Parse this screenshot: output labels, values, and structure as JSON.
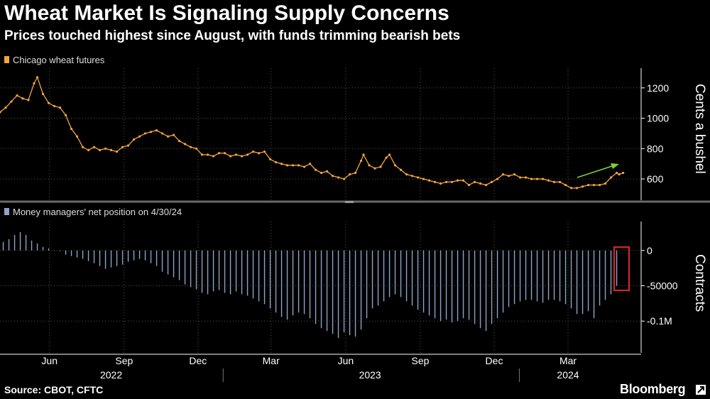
{
  "title": "Wheat Market Is Signaling Supply Concerns",
  "subtitle": "Prices touched highest since August, with funds trimming bearish bets",
  "source": "Source: CBOT, CFTC",
  "brand": "Bloomberg",
  "colors": {
    "price_line": "#f5a53c",
    "position_bars": "#8da3c8",
    "trend_arrow": "#7dd33a",
    "highlight_box": "#e0242c",
    "grid": "#555555",
    "background": "#000000"
  },
  "chart_data": [
    {
      "type": "line",
      "legend": "Chicago wheat futures",
      "ylabel": "Cents a bushel",
      "yticks": [
        600,
        800,
        1000,
        1200
      ],
      "ylim": [
        460,
        1330
      ],
      "x_range": [
        "2022-04-01",
        "2024-05-10"
      ],
      "grid": true,
      "series": [
        {
          "name": "Chicago wheat futures",
          "points": [
            [
              "2022-04-01",
              1040
            ],
            [
              "2022-04-08",
              1070
            ],
            [
              "2022-04-15",
              1110
            ],
            [
              "2022-04-22",
              1150
            ],
            [
              "2022-04-29",
              1130
            ],
            [
              "2022-05-06",
              1120
            ],
            [
              "2022-05-13",
              1230
            ],
            [
              "2022-05-17",
              1270
            ],
            [
              "2022-05-24",
              1160
            ],
            [
              "2022-05-31",
              1100
            ],
            [
              "2022-06-07",
              1080
            ],
            [
              "2022-06-14",
              1070
            ],
            [
              "2022-06-21",
              1020
            ],
            [
              "2022-06-28",
              930
            ],
            [
              "2022-07-05",
              880
            ],
            [
              "2022-07-12",
              810
            ],
            [
              "2022-07-19",
              790
            ],
            [
              "2022-07-26",
              810
            ],
            [
              "2022-08-02",
              790
            ],
            [
              "2022-08-09",
              800
            ],
            [
              "2022-08-16",
              790
            ],
            [
              "2022-08-23",
              780
            ],
            [
              "2022-08-30",
              810
            ],
            [
              "2022-09-06",
              820
            ],
            [
              "2022-09-13",
              860
            ],
            [
              "2022-09-20",
              880
            ],
            [
              "2022-09-27",
              900
            ],
            [
              "2022-10-04",
              910
            ],
            [
              "2022-10-11",
              920
            ],
            [
              "2022-10-18",
              900
            ],
            [
              "2022-10-25",
              880
            ],
            [
              "2022-11-01",
              890
            ],
            [
              "2022-11-08",
              850
            ],
            [
              "2022-11-15",
              830
            ],
            [
              "2022-11-22",
              810
            ],
            [
              "2022-11-29",
              800
            ],
            [
              "2022-12-06",
              760
            ],
            [
              "2022-12-13",
              760
            ],
            [
              "2022-12-20",
              750
            ],
            [
              "2022-12-27",
              770
            ],
            [
              "2023-01-03",
              770
            ],
            [
              "2023-01-10",
              750
            ],
            [
              "2023-01-17",
              760
            ],
            [
              "2023-01-24",
              750
            ],
            [
              "2023-01-31",
              760
            ],
            [
              "2023-02-07",
              780
            ],
            [
              "2023-02-14",
              770
            ],
            [
              "2023-02-21",
              780
            ],
            [
              "2023-02-28",
              730
            ],
            [
              "2023-03-07",
              710
            ],
            [
              "2023-03-14",
              700
            ],
            [
              "2023-03-21",
              690
            ],
            [
              "2023-03-28",
              690
            ],
            [
              "2023-04-04",
              690
            ],
            [
              "2023-04-11",
              680
            ],
            [
              "2023-04-18",
              700
            ],
            [
              "2023-04-25",
              660
            ],
            [
              "2023-05-02",
              640
            ],
            [
              "2023-05-09",
              650
            ],
            [
              "2023-05-16",
              620
            ],
            [
              "2023-05-23",
              610
            ],
            [
              "2023-05-30",
              600
            ],
            [
              "2023-06-06",
              630
            ],
            [
              "2023-06-13",
              640
            ],
            [
              "2023-06-20",
              720
            ],
            [
              "2023-06-23",
              760
            ],
            [
              "2023-06-30",
              690
            ],
            [
              "2023-07-07",
              670
            ],
            [
              "2023-07-14",
              680
            ],
            [
              "2023-07-21",
              740
            ],
            [
              "2023-07-25",
              760
            ],
            [
              "2023-08-01",
              690
            ],
            [
              "2023-08-08",
              660
            ],
            [
              "2023-08-15",
              630
            ],
            [
              "2023-08-22",
              620
            ],
            [
              "2023-08-29",
              610
            ],
            [
              "2023-09-05",
              600
            ],
            [
              "2023-09-12",
              590
            ],
            [
              "2023-09-19",
              580
            ],
            [
              "2023-09-26",
              570
            ],
            [
              "2023-10-03",
              580
            ],
            [
              "2023-10-10",
              580
            ],
            [
              "2023-10-17",
              590
            ],
            [
              "2023-10-24",
              590
            ],
            [
              "2023-10-31",
              560
            ],
            [
              "2023-11-07",
              580
            ],
            [
              "2023-11-14",
              570
            ],
            [
              "2023-11-21",
              560
            ],
            [
              "2023-11-28",
              580
            ],
            [
              "2023-12-05",
              600
            ],
            [
              "2023-12-12",
              630
            ],
            [
              "2023-12-19",
              620
            ],
            [
              "2023-12-26",
              630
            ],
            [
              "2024-01-02",
              610
            ],
            [
              "2024-01-09",
              610
            ],
            [
              "2024-01-16",
              600
            ],
            [
              "2024-01-23",
              600
            ],
            [
              "2024-01-30",
              600
            ],
            [
              "2024-02-06",
              590
            ],
            [
              "2024-02-13",
              580
            ],
            [
              "2024-02-20",
              580
            ],
            [
              "2024-02-27",
              560
            ],
            [
              "2024-03-05",
              540
            ],
            [
              "2024-03-12",
              540
            ],
            [
              "2024-03-19",
              550
            ],
            [
              "2024-03-26",
              560
            ],
            [
              "2024-04-02",
              560
            ],
            [
              "2024-04-09",
              560
            ],
            [
              "2024-04-16",
              570
            ],
            [
              "2024-04-23",
              610
            ],
            [
              "2024-04-30",
              640
            ],
            [
              "2024-05-03",
              630
            ],
            [
              "2024-05-08",
              640
            ]
          ]
        }
      ],
      "annotations": [
        "trend-arrow"
      ]
    },
    {
      "type": "bar",
      "legend": "Money managers' net position on 4/30/24",
      "ylabel": "Contracts",
      "ytick_labels": [
        "0",
        "-50000",
        "-0.1M"
      ],
      "yticks": [
        0,
        -50000,
        -100000
      ],
      "ylim": [
        -145000,
        41000
      ],
      "grid": true,
      "highlight": "2024-04-30",
      "series": [
        {
          "name": "Money managers' net position",
          "points": [
            [
              "2022-04-05",
              12000
            ],
            [
              "2022-04-12",
              16000
            ],
            [
              "2022-04-19",
              22000
            ],
            [
              "2022-04-26",
              26000
            ],
            [
              "2022-05-03",
              22000
            ],
            [
              "2022-05-10",
              14000
            ],
            [
              "2022-05-17",
              10000
            ],
            [
              "2022-05-24",
              5000
            ],
            [
              "2022-05-31",
              3000
            ],
            [
              "2022-06-07",
              0
            ],
            [
              "2022-06-14",
              -1000
            ],
            [
              "2022-06-21",
              -6000
            ],
            [
              "2022-06-28",
              -8000
            ],
            [
              "2022-07-05",
              -10000
            ],
            [
              "2022-07-12",
              -12000
            ],
            [
              "2022-07-19",
              -15000
            ],
            [
              "2022-07-26",
              -18000
            ],
            [
              "2022-08-02",
              -22000
            ],
            [
              "2022-08-09",
              -26000
            ],
            [
              "2022-08-16",
              -24000
            ],
            [
              "2022-08-23",
              -22000
            ],
            [
              "2022-08-30",
              -20000
            ],
            [
              "2022-09-06",
              -16000
            ],
            [
              "2022-09-13",
              -14000
            ],
            [
              "2022-09-20",
              -12000
            ],
            [
              "2022-09-27",
              -14000
            ],
            [
              "2022-10-04",
              -18000
            ],
            [
              "2022-10-11",
              -22000
            ],
            [
              "2022-10-18",
              -30000
            ],
            [
              "2022-10-25",
              -34000
            ],
            [
              "2022-11-01",
              -38000
            ],
            [
              "2022-11-08",
              -42000
            ],
            [
              "2022-11-15",
              -48000
            ],
            [
              "2022-11-22",
              -52000
            ],
            [
              "2022-11-29",
              -55000
            ],
            [
              "2022-12-06",
              -60000
            ],
            [
              "2022-12-13",
              -62000
            ],
            [
              "2022-12-20",
              -58000
            ],
            [
              "2022-12-27",
              -56000
            ],
            [
              "2023-01-03",
              -60000
            ],
            [
              "2023-01-10",
              -62000
            ],
            [
              "2023-01-17",
              -58000
            ],
            [
              "2023-01-24",
              -62000
            ],
            [
              "2023-01-31",
              -64000
            ],
            [
              "2023-02-07",
              -68000
            ],
            [
              "2023-02-14",
              -72000
            ],
            [
              "2023-02-21",
              -76000
            ],
            [
              "2023-02-28",
              -82000
            ],
            [
              "2023-03-07",
              -88000
            ],
            [
              "2023-03-14",
              -94000
            ],
            [
              "2023-03-21",
              -98000
            ],
            [
              "2023-03-28",
              -92000
            ],
            [
              "2023-04-04",
              -88000
            ],
            [
              "2023-04-11",
              -90000
            ],
            [
              "2023-04-18",
              -96000
            ],
            [
              "2023-04-25",
              -104000
            ],
            [
              "2023-05-02",
              -110000
            ],
            [
              "2023-05-09",
              -114000
            ],
            [
              "2023-05-16",
              -118000
            ],
            [
              "2023-05-23",
              -124000
            ],
            [
              "2023-05-30",
              -116000
            ],
            [
              "2023-06-06",
              -120000
            ],
            [
              "2023-06-13",
              -122000
            ],
            [
              "2023-06-20",
              -112000
            ],
            [
              "2023-06-27",
              -96000
            ],
            [
              "2023-07-04",
              -82000
            ],
            [
              "2023-07-11",
              -78000
            ],
            [
              "2023-07-18",
              -72000
            ],
            [
              "2023-07-25",
              -66000
            ],
            [
              "2023-08-01",
              -62000
            ],
            [
              "2023-08-08",
              -66000
            ],
            [
              "2023-08-15",
              -72000
            ],
            [
              "2023-08-22",
              -78000
            ],
            [
              "2023-08-29",
              -84000
            ],
            [
              "2023-09-05",
              -88000
            ],
            [
              "2023-09-12",
              -92000
            ],
            [
              "2023-09-19",
              -96000
            ],
            [
              "2023-09-26",
              -100000
            ],
            [
              "2023-10-03",
              -98000
            ],
            [
              "2023-10-10",
              -102000
            ],
            [
              "2023-10-17",
              -100000
            ],
            [
              "2023-10-24",
              -96000
            ],
            [
              "2023-10-31",
              -98000
            ],
            [
              "2023-11-07",
              -104000
            ],
            [
              "2023-11-14",
              -110000
            ],
            [
              "2023-11-21",
              -114000
            ],
            [
              "2023-11-28",
              -104000
            ],
            [
              "2023-12-05",
              -96000
            ],
            [
              "2023-12-12",
              -88000
            ],
            [
              "2023-12-19",
              -80000
            ],
            [
              "2023-12-26",
              -76000
            ],
            [
              "2024-01-02",
              -72000
            ],
            [
              "2024-01-09",
              -70000
            ],
            [
              "2024-01-16",
              -70000
            ],
            [
              "2024-01-23",
              -72000
            ],
            [
              "2024-01-30",
              -74000
            ],
            [
              "2024-02-06",
              -70000
            ],
            [
              "2024-02-13",
              -70000
            ],
            [
              "2024-02-20",
              -72000
            ],
            [
              "2024-02-27",
              -76000
            ],
            [
              "2024-03-05",
              -82000
            ],
            [
              "2024-03-12",
              -90000
            ],
            [
              "2024-03-19",
              -90000
            ],
            [
              "2024-03-26",
              -86000
            ],
            [
              "2024-04-02",
              -96000
            ],
            [
              "2024-04-09",
              -78000
            ],
            [
              "2024-04-16",
              -70000
            ],
            [
              "2024-04-23",
              -62000
            ],
            [
              "2024-04-30",
              -50000
            ]
          ]
        }
      ]
    }
  ],
  "x_axis": {
    "month_ticks": [
      {
        "label": "Jun",
        "date": "2022-06-01"
      },
      {
        "label": "Sep",
        "date": "2022-09-01"
      },
      {
        "label": "Dec",
        "date": "2022-12-01"
      },
      {
        "label": "Mar",
        "date": "2023-03-01"
      },
      {
        "label": "Jun",
        "date": "2023-06-01"
      },
      {
        "label": "Sep",
        "date": "2023-09-01"
      },
      {
        "label": "Dec",
        "date": "2023-12-01"
      },
      {
        "label": "Mar",
        "date": "2024-03-01"
      }
    ],
    "year_labels": [
      {
        "label": "2022",
        "date": "2022-08-16"
      },
      {
        "label": "2023",
        "date": "2023-07-01"
      },
      {
        "label": "2024",
        "date": "2024-03-01"
      }
    ],
    "year_separators": [
      "2023-01-01",
      "2024-01-01"
    ]
  }
}
